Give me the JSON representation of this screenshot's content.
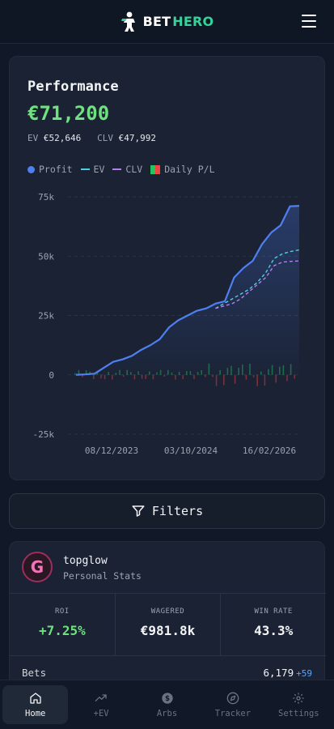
{
  "header": {
    "brand_part1": "BET",
    "brand_part2": "HERO"
  },
  "performance": {
    "title": "Performance",
    "value": "€71,200",
    "ev_label": "EV",
    "ev_value": "€52,646",
    "clv_label": "CLV",
    "clv_value": "€47,992",
    "legend": {
      "profit": "Profit",
      "ev": "EV",
      "clv": "CLV",
      "daily": "Daily P/L"
    }
  },
  "chart_data": {
    "type": "line",
    "y_ticks": [
      "75k",
      "50k",
      "25k",
      "0",
      "-25k"
    ],
    "ylim": [
      -25000,
      75000
    ],
    "x_ticks": [
      "08/12/2023",
      "03/10/2024",
      "16/02/2026"
    ],
    "series": [
      {
        "name": "Profit",
        "color": "#4f7ff0",
        "values": [
          0,
          200,
          500,
          3000,
          5500,
          6500,
          8000,
          10500,
          12500,
          15000,
          20000,
          23000,
          25000,
          27000,
          28000,
          30000,
          31000,
          41000,
          45000,
          48000,
          55000,
          60000,
          63000,
          71000,
          71200
        ]
      },
      {
        "name": "EV",
        "color": "#4ecfe0",
        "dashed": true,
        "start_index": 15,
        "values": [
          28000,
          30000,
          32000,
          34000,
          36000,
          39000,
          43000,
          49000,
          51000,
          52000,
          52646
        ]
      },
      {
        "name": "CLV",
        "color": "#b57cf0",
        "dashed": true,
        "start_index": 15,
        "values": [
          28000,
          29000,
          30000,
          32000,
          35000,
          38000,
          41000,
          46000,
          47500,
          47800,
          47992
        ]
      }
    ],
    "daily_pl_series": {
      "name": "Daily P/L",
      "colors": [
        "#22c55e",
        "#ef4444"
      ]
    },
    "grid": true
  },
  "filters": {
    "label": "Filters"
  },
  "user": {
    "initial": "G",
    "name": "topglow",
    "subtitle": "Personal Stats",
    "roi_label": "ROI",
    "roi_value": "+7.25%",
    "wagered_label": "WAGERED",
    "wagered_value": "€981.8k",
    "winrate_label": "WIN RATE",
    "winrate_value": "43.3%",
    "bets_label": "Bets",
    "bets_value": "6,179",
    "bets_delta": "+59"
  },
  "nav": [
    {
      "label": "Home",
      "icon": "home-icon",
      "active": true
    },
    {
      "label": "+EV",
      "icon": "trend-icon",
      "active": false
    },
    {
      "label": "Arbs",
      "icon": "dollar-icon",
      "active": false
    },
    {
      "label": "Tracker",
      "icon": "compass-icon",
      "active": false
    },
    {
      "label": "Settings",
      "icon": "gear-icon",
      "active": false
    }
  ]
}
